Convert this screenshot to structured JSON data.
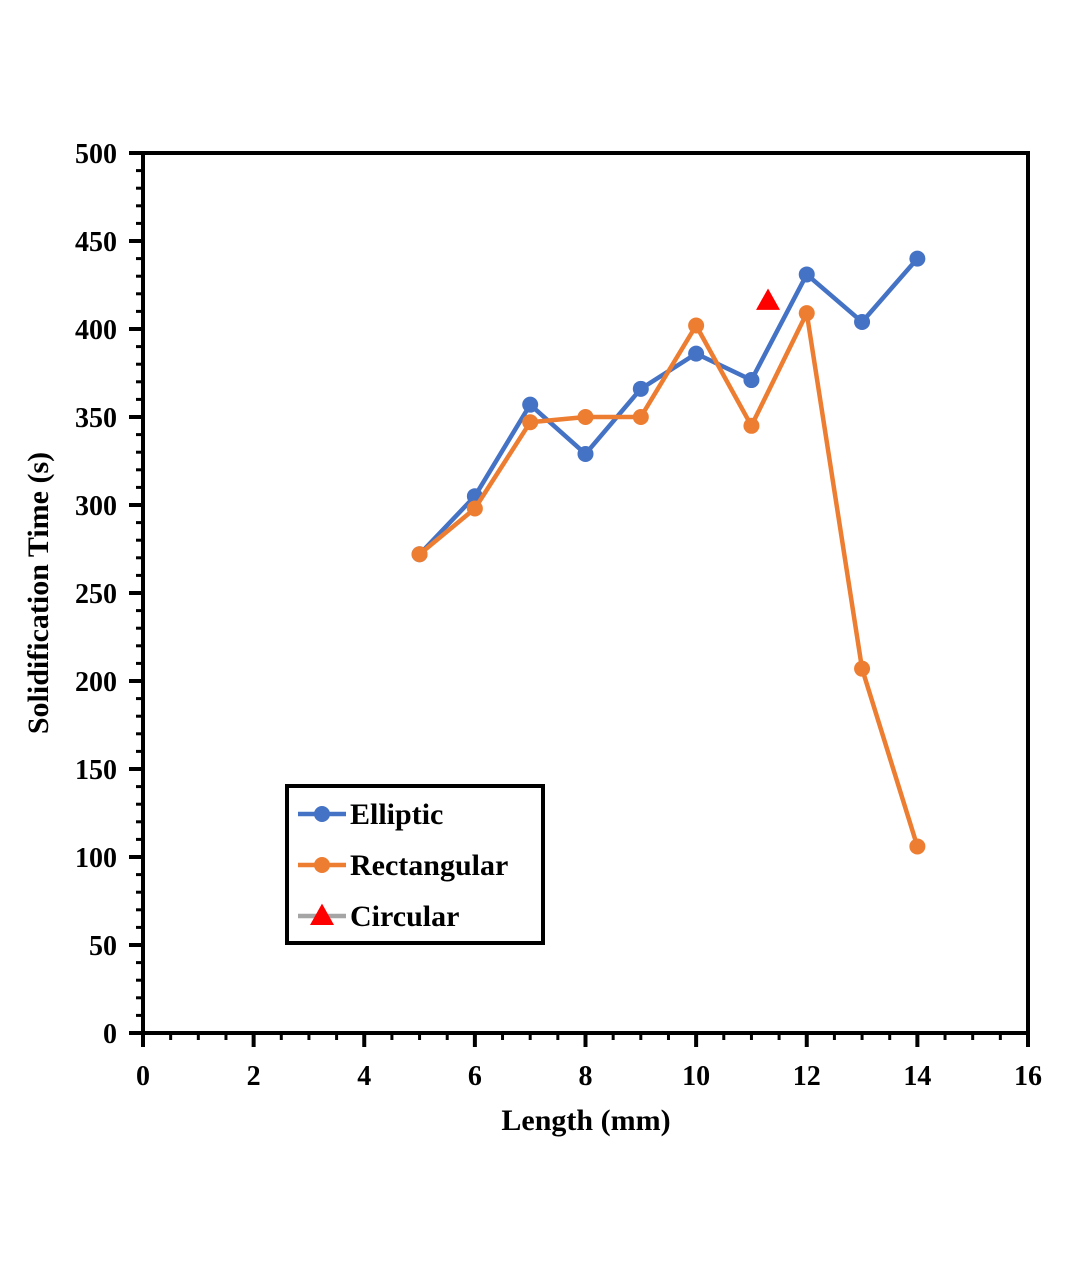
{
  "chart_data": {
    "type": "line",
    "xlabel": "Length (mm)",
    "ylabel": "Solidification Time (s)",
    "xlim": [
      0,
      16
    ],
    "ylim": [
      0,
      500
    ],
    "xticks": [
      0,
      2,
      4,
      6,
      8,
      10,
      12,
      14,
      16
    ],
    "yticks": [
      0,
      50,
      100,
      150,
      200,
      250,
      300,
      350,
      400,
      450,
      500
    ],
    "grid": false,
    "legend_position": "bottom-left",
    "series": [
      {
        "name": "Elliptic",
        "color": "#4472C4",
        "marker": "circle",
        "x": [
          5,
          6,
          7,
          8,
          9,
          10,
          11,
          12,
          13,
          14
        ],
        "y": [
          272,
          305,
          357,
          329,
          366,
          386,
          371,
          431,
          404,
          440
        ]
      },
      {
        "name": "Rectangular",
        "color": "#ED7D31",
        "marker": "circle",
        "x": [
          5,
          6,
          7,
          8,
          9,
          10,
          11,
          12,
          13,
          14
        ],
        "y": [
          272,
          298,
          347,
          350,
          350,
          402,
          345,
          409,
          207,
          106
        ]
      },
      {
        "name": "Circular",
        "color": "#FF0000",
        "line_color": "#A5A5A5",
        "marker": "triangle",
        "x": [
          11.3
        ],
        "y": [
          416
        ]
      }
    ]
  }
}
